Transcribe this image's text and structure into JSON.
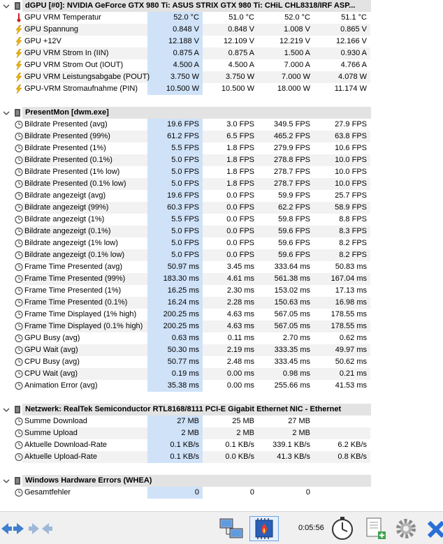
{
  "sections": [
    {
      "title": "dGPU [#0]: NVIDIA GeForce GTX 980 Ti: ASUS STRIX GTX 980 Ti: CHiL CHL8318/IRF ASP...",
      "rows": [
        {
          "icon": "thermometer-icon",
          "label": "GPU VRM Temperatur",
          "v": [
            "52.0 °C",
            "51.0 °C",
            "52.0 °C",
            "51.1 °C"
          ]
        },
        {
          "icon": "lightning-icon",
          "label": "GPU Spannung",
          "v": [
            "0.848 V",
            "0.848 V",
            "1.008 V",
            "0.865 V"
          ]
        },
        {
          "icon": "lightning-icon",
          "label": "GPU +12V",
          "v": [
            "12.188 V",
            "12.109 V",
            "12.219 V",
            "12.166 V"
          ]
        },
        {
          "icon": "lightning-icon",
          "label": "GPU VRM Strom In (IIN)",
          "v": [
            "0.875 A",
            "0.875 A",
            "1.500 A",
            "0.930 A"
          ]
        },
        {
          "icon": "lightning-icon",
          "label": "GPU VRM Strom Out (IOUT)",
          "v": [
            "4.500 A",
            "4.500 A",
            "7.000 A",
            "4.766 A"
          ]
        },
        {
          "icon": "lightning-icon",
          "label": "GPU VRM Leistungsabgabe (POUT)",
          "v": [
            "3.750 W",
            "3.750 W",
            "7.000 W",
            "4.078 W"
          ]
        },
        {
          "icon": "lightning-icon",
          "label": "GPU-VRM Stromaufnahme (PIN)",
          "v": [
            "10.500 W",
            "10.500 W",
            "18.000 W",
            "11.174 W"
          ]
        }
      ]
    },
    {
      "title": "PresentMon [dwm.exe]",
      "rows": [
        {
          "icon": "clock-icon",
          "label": "Bildrate Presented (avg)",
          "v": [
            "19.6 FPS",
            "3.0 FPS",
            "349.5 FPS",
            "27.9 FPS"
          ]
        },
        {
          "icon": "clock-icon",
          "label": "Bildrate Presented (99%)",
          "v": [
            "61.2 FPS",
            "6.5 FPS",
            "465.2 FPS",
            "63.8 FPS"
          ]
        },
        {
          "icon": "clock-icon",
          "label": "Bildrate Presented (1%)",
          "v": [
            "5.5 FPS",
            "1.8 FPS",
            "279.9 FPS",
            "10.6 FPS"
          ]
        },
        {
          "icon": "clock-icon",
          "label": "Bildrate Presented (0.1%)",
          "v": [
            "5.0 FPS",
            "1.8 FPS",
            "278.8 FPS",
            "10.0 FPS"
          ]
        },
        {
          "icon": "clock-icon",
          "label": "Bildrate Presented (1% low)",
          "v": [
            "5.0 FPS",
            "1.8 FPS",
            "278.7 FPS",
            "10.0 FPS"
          ]
        },
        {
          "icon": "clock-icon",
          "label": "Bildrate Presented (0.1% low)",
          "v": [
            "5.0 FPS",
            "1.8 FPS",
            "278.7 FPS",
            "10.0 FPS"
          ]
        },
        {
          "icon": "clock-icon",
          "label": "Bildrate angezeigt (avg)",
          "v": [
            "19.6 FPS",
            "0.0 FPS",
            "59.9 FPS",
            "25.7 FPS"
          ]
        },
        {
          "icon": "clock-icon",
          "label": "Bildrate angezeigt (99%)",
          "v": [
            "60.3 FPS",
            "0.0 FPS",
            "62.2 FPS",
            "58.9 FPS"
          ]
        },
        {
          "icon": "clock-icon",
          "label": "Bildrate angezeigt (1%)",
          "v": [
            "5.5 FPS",
            "0.0 FPS",
            "59.8 FPS",
            "8.8 FPS"
          ]
        },
        {
          "icon": "clock-icon",
          "label": "Bildrate angezeigt (0.1%)",
          "v": [
            "5.0 FPS",
            "0.0 FPS",
            "59.6 FPS",
            "8.3 FPS"
          ]
        },
        {
          "icon": "clock-icon",
          "label": "Bildrate angezeigt (1% low)",
          "v": [
            "5.0 FPS",
            "0.0 FPS",
            "59.6 FPS",
            "8.2 FPS"
          ]
        },
        {
          "icon": "clock-icon",
          "label": "Bildrate angezeigt (0.1% low)",
          "v": [
            "5.0 FPS",
            "0.0 FPS",
            "59.6 FPS",
            "8.2 FPS"
          ]
        },
        {
          "icon": "clock-icon",
          "label": "Frame Time Presented (avg)",
          "v": [
            "50.97 ms",
            "3.45 ms",
            "333.64 ms",
            "50.83 ms"
          ]
        },
        {
          "icon": "clock-icon",
          "label": "Frame Time Presented (99%)",
          "v": [
            "183.30 ms",
            "4.61 ms",
            "561.38 ms",
            "167.04 ms"
          ]
        },
        {
          "icon": "clock-icon",
          "label": "Frame Time Presented (1%)",
          "v": [
            "16.25 ms",
            "2.30 ms",
            "153.02 ms",
            "17.13 ms"
          ]
        },
        {
          "icon": "clock-icon",
          "label": "Frame Time Presented (0.1%)",
          "v": [
            "16.24 ms",
            "2.28 ms",
            "150.63 ms",
            "16.98 ms"
          ]
        },
        {
          "icon": "clock-icon",
          "label": "Frame Time Displayed (1% high)",
          "v": [
            "200.25 ms",
            "4.63 ms",
            "567.05 ms",
            "178.55 ms"
          ]
        },
        {
          "icon": "clock-icon",
          "label": "Frame Time Displayed (0.1% high)",
          "v": [
            "200.25 ms",
            "4.63 ms",
            "567.05 ms",
            "178.55 ms"
          ]
        },
        {
          "icon": "clock-icon",
          "label": "GPU Busy (avg)",
          "v": [
            "0.63 ms",
            "0.11 ms",
            "2.70 ms",
            "0.62 ms"
          ]
        },
        {
          "icon": "clock-icon",
          "label": "GPU Wait (avg)",
          "v": [
            "50.30 ms",
            "2.19 ms",
            "333.35 ms",
            "49.97 ms"
          ]
        },
        {
          "icon": "clock-icon",
          "label": "CPU Busy (avg)",
          "v": [
            "50.77 ms",
            "2.48 ms",
            "333.45 ms",
            "50.62 ms"
          ]
        },
        {
          "icon": "clock-icon",
          "label": "CPU Wait (avg)",
          "v": [
            "0.19 ms",
            "0.00 ms",
            "0.98 ms",
            "0.21 ms"
          ]
        },
        {
          "icon": "clock-icon",
          "label": "Animation Error (avg)",
          "v": [
            "35.38 ms",
            "0.00 ms",
            "255.66 ms",
            "41.53 ms"
          ]
        }
      ]
    },
    {
      "title": "Netzwerk: RealTek Semiconductor RTL8168/8111 PCI-E Gigabit Ethernet NIC - Ethernet",
      "rows": [
        {
          "icon": "clock-icon",
          "label": "Summe Download",
          "v": [
            "27 MB",
            "25 MB",
            "27 MB",
            ""
          ]
        },
        {
          "icon": "clock-icon",
          "label": "Summe Upload",
          "v": [
            "2 MB",
            "2 MB",
            "2 MB",
            ""
          ]
        },
        {
          "icon": "clock-icon",
          "label": "Aktuelle Download-Rate",
          "v": [
            "0.1 KB/s",
            "0.1 KB/s",
            "339.1 KB/s",
            "6.2 KB/s"
          ]
        },
        {
          "icon": "clock-icon",
          "label": "Aktuelle Upload-Rate",
          "v": [
            "0.1 KB/s",
            "0.0 KB/s",
            "41.3 KB/s",
            "0.8 KB/s"
          ]
        }
      ]
    },
    {
      "title": "Windows Hardware Errors (WHEA)",
      "rows": [
        {
          "icon": "clock-icon",
          "label": "Gesamtfehler",
          "v": [
            "0",
            "0",
            "0",
            ""
          ]
        }
      ]
    }
  ],
  "toolbar": {
    "timer": "0:05:56",
    "buttons": [
      "nav-expand-icon",
      "nav-collapse-icon",
      "network-computers-icon",
      "sensor-chip-flame-icon",
      "stopwatch-icon",
      "report-add-icon",
      "gear-icon",
      "close-icon"
    ]
  },
  "colors": {
    "highlight": "#cfe2f8",
    "section_band": "#e3e3e3",
    "stripe": "#f2f2f2",
    "accent_blue": "#1f6fd1"
  }
}
